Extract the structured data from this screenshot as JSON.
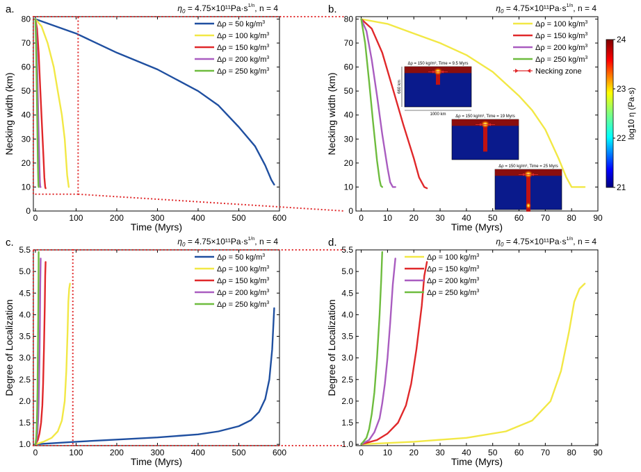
{
  "figure": {
    "colors": {
      "50": "#1f4fa0",
      "100": "#f2e845",
      "150": "#e0282a",
      "200": "#a95cc0",
      "250": "#6ebc3e",
      "zoom_box": "#e0282a"
    },
    "colorbar": {
      "label": "log10 η (Pa·s)",
      "ticks": [
        "21",
        "22",
        "23",
        "24"
      ],
      "range": [
        21,
        24
      ],
      "colormap": "jet"
    },
    "insets": [
      {
        "caption": "Δρ = 150 kg/m³, Time = 9.5 Myrs",
        "height_label": "660 km",
        "width_label": "1000 km"
      },
      {
        "caption": "Δρ = 150 kg/m³, Time = 19 Myrs"
      },
      {
        "caption": "Δρ = 150 kg/m³, Time = 25 Myrs"
      }
    ]
  },
  "chart_data": [
    {
      "panel": "a.",
      "type": "line",
      "title": "η0 = 4.75×10¹¹Pa·s^(1/n), n = 4",
      "xlabel": "Time (Myrs)",
      "ylabel": "Necking width (km)",
      "xlim": [
        -5,
        600
      ],
      "ylim": [
        0,
        81
      ],
      "xticks": [
        "0",
        "100",
        "200",
        "300",
        "400",
        "500",
        "600"
      ],
      "yticks": [
        "0",
        "10",
        "20",
        "30",
        "40",
        "50",
        "60",
        "70",
        "80"
      ],
      "legend": "top-right",
      "zoom_box": {
        "x": [
          0,
          105
        ],
        "y": [
          7,
          81
        ]
      },
      "series": [
        {
          "name": "Δρ = 50 kg/m³",
          "drho": "50",
          "x": [
            0,
            100,
            200,
            300,
            400,
            450,
            500,
            540,
            565,
            580,
            587
          ],
          "y": [
            80,
            74,
            66,
            59,
            50,
            44,
            35,
            27,
            19,
            13,
            11
          ]
        },
        {
          "name": "Δρ = 100 kg/m³",
          "drho": "100",
          "x": [
            0,
            15,
            30,
            45,
            55,
            65,
            72,
            78,
            82
          ],
          "y": [
            80,
            77,
            70,
            60,
            50,
            40,
            30,
            15,
            10
          ]
        },
        {
          "name": "Δρ = 150 kg/m³",
          "drho": "150",
          "x": [
            0,
            4,
            8,
            12,
            16,
            20,
            22,
            24,
            25
          ],
          "y": [
            80,
            76,
            66,
            51,
            36,
            22,
            14,
            10,
            9.5
          ]
        },
        {
          "name": "Δρ = 200 kg/m³",
          "drho": "200",
          "x": [
            0,
            2,
            4,
            6,
            8,
            10,
            11,
            12,
            13
          ],
          "y": [
            80,
            75,
            63,
            48,
            32,
            18,
            12,
            10,
            10
          ]
        },
        {
          "name": "Δρ = 250 kg/m³",
          "drho": "250",
          "x": [
            0,
            1.5,
            3,
            4.5,
            6,
            7,
            7.5,
            8
          ],
          "y": [
            80,
            70,
            54,
            37,
            21,
            13,
            10.5,
            10
          ]
        }
      ]
    },
    {
      "panel": "b.",
      "type": "line",
      "title": "η0 = 4.75×10¹¹Pa·s^(1/n), n = 4",
      "xlabel": "Time (Myrs)",
      "ylabel": "Necking width (km)",
      "xlim": [
        -2,
        90
      ],
      "ylim": [
        0,
        81
      ],
      "xticks": [
        "0",
        "10",
        "20",
        "30",
        "40",
        "50",
        "60",
        "70",
        "80",
        "90"
      ],
      "yticks": [
        "0",
        "10",
        "20",
        "30",
        "40",
        "50",
        "60",
        "70",
        "80"
      ],
      "legend": "top-right",
      "extra_legend": "Necking zone",
      "series": [
        {
          "name": "Δρ = 100 kg/m³",
          "drho": "100",
          "x": [
            0,
            10,
            20,
            30,
            40,
            50,
            60,
            65,
            70,
            75,
            78,
            80,
            85
          ],
          "y": [
            80,
            78,
            74,
            70,
            65,
            58,
            48,
            42,
            34,
            22,
            14,
            10,
            10
          ]
        },
        {
          "name": "Δρ = 150 kg/m³",
          "drho": "150",
          "x": [
            0,
            4,
            8,
            12,
            16,
            20,
            22,
            24,
            25
          ],
          "y": [
            80,
            76,
            66,
            51,
            36,
            22,
            14,
            10,
            9.5
          ]
        },
        {
          "name": "Δρ = 200 kg/m³",
          "drho": "200",
          "x": [
            0,
            2,
            4,
            6,
            8,
            10,
            11,
            12,
            13
          ],
          "y": [
            80,
            75,
            63,
            48,
            32,
            18,
            12,
            10,
            10
          ]
        },
        {
          "name": "Δρ = 250 kg/m³",
          "drho": "250",
          "x": [
            0,
            1.5,
            3,
            4.5,
            6,
            7,
            7.5,
            8
          ],
          "y": [
            80,
            70,
            54,
            37,
            21,
            13,
            10.5,
            10
          ]
        }
      ]
    },
    {
      "panel": "c.",
      "type": "line",
      "title": "η0 = 4.75×10¹¹Pa·s^(1/n), n = 4",
      "xlabel": "Time (Myrs)",
      "ylabel": "Degree of Localization",
      "xlim": [
        -5,
        600
      ],
      "ylim": [
        0.97,
        5.5
      ],
      "xticks": [
        "0",
        "100",
        "200",
        "300",
        "400",
        "500",
        "600"
      ],
      "yticks": [
        "1.0",
        "1.5",
        "2.0",
        "2.5",
        "3.0",
        "3.5",
        "4.0",
        "4.5",
        "5.0",
        "5.5"
      ],
      "legend": "top-right",
      "zoom_box": {
        "x": [
          0,
          92
        ],
        "y": [
          0.97,
          5.5
        ]
      },
      "series": [
        {
          "name": "Δρ = 50 kg/m³",
          "drho": "50",
          "x": [
            0,
            100,
            200,
            300,
            400,
            450,
            500,
            530,
            550,
            565,
            575,
            582,
            587
          ],
          "y": [
            1.0,
            1.06,
            1.11,
            1.16,
            1.23,
            1.3,
            1.42,
            1.56,
            1.75,
            2.05,
            2.5,
            3.2,
            4.15
          ]
        },
        {
          "name": "Δρ = 100 kg/m³",
          "drho": "100",
          "x": [
            0,
            20,
            40,
            55,
            65,
            72,
            76,
            79,
            81,
            83,
            85
          ],
          "y": [
            1.0,
            1.06,
            1.15,
            1.3,
            1.55,
            2.0,
            2.7,
            3.6,
            4.3,
            4.6,
            4.72
          ]
        },
        {
          "name": "Δρ = 150 kg/m³",
          "drho": "150",
          "x": [
            0,
            6,
            10,
            14,
            17,
            19,
            21,
            23,
            24,
            25
          ],
          "y": [
            1.0,
            1.1,
            1.25,
            1.5,
            1.9,
            2.4,
            3.2,
            4.2,
            4.9,
            5.22
          ]
        },
        {
          "name": "Δρ = 200 kg/m³",
          "drho": "200",
          "x": [
            0,
            3,
            5,
            7,
            8,
            9,
            10,
            11,
            12,
            13
          ],
          "y": [
            1.0,
            1.1,
            1.28,
            1.6,
            1.95,
            2.4,
            3.0,
            3.8,
            4.7,
            5.3
          ]
        },
        {
          "name": "Δρ = 250 kg/m³",
          "drho": "250",
          "x": [
            0,
            2,
            3,
            4,
            5,
            6,
            7,
            7.6,
            8
          ],
          "y": [
            1.0,
            1.15,
            1.35,
            1.7,
            2.2,
            3.0,
            4.0,
            4.8,
            5.45
          ]
        }
      ]
    },
    {
      "panel": "d.",
      "type": "line",
      "title": "η0 = 4.75×10¹¹Pa·s^(1/n), n = 4",
      "xlabel": "Time (Myrs)",
      "ylabel": "Degree of Localization",
      "xlim": [
        -2,
        90
      ],
      "ylim": [
        0.97,
        5.5
      ],
      "xticks": [
        "0",
        "10",
        "20",
        "30",
        "40",
        "50",
        "60",
        "70",
        "80",
        "90"
      ],
      "yticks": [
        "1.0",
        "1.5",
        "2.0",
        "2.5",
        "3.0",
        "3.5",
        "4.0",
        "4.5",
        "5.0",
        "5.5"
      ],
      "legend": "top-left",
      "series": [
        {
          "name": "Δρ = 100 kg/m³",
          "drho": "100",
          "x": [
            0,
            20,
            40,
            55,
            65,
            72,
            76,
            79,
            81,
            83,
            85
          ],
          "y": [
            1.0,
            1.06,
            1.15,
            1.3,
            1.55,
            2.0,
            2.7,
            3.6,
            4.3,
            4.6,
            4.72
          ]
        },
        {
          "name": "Δρ = 150 kg/m³",
          "drho": "150",
          "x": [
            0,
            6,
            10,
            14,
            17,
            19,
            21,
            23,
            24,
            25
          ],
          "y": [
            1.0,
            1.1,
            1.25,
            1.5,
            1.9,
            2.4,
            3.2,
            4.2,
            4.9,
            5.22
          ]
        },
        {
          "name": "Δρ = 200 kg/m³",
          "drho": "200",
          "x": [
            0,
            3,
            5,
            7,
            8,
            9,
            10,
            11,
            12,
            13
          ],
          "y": [
            1.0,
            1.1,
            1.28,
            1.6,
            1.95,
            2.4,
            3.0,
            3.8,
            4.7,
            5.3
          ]
        },
        {
          "name": "Δρ = 250 kg/m³",
          "drho": "250",
          "x": [
            0,
            2,
            3,
            4,
            5,
            6,
            7,
            7.6,
            8
          ],
          "y": [
            1.0,
            1.15,
            1.35,
            1.7,
            2.2,
            3.0,
            4.0,
            4.8,
            5.45
          ]
        }
      ]
    }
  ]
}
